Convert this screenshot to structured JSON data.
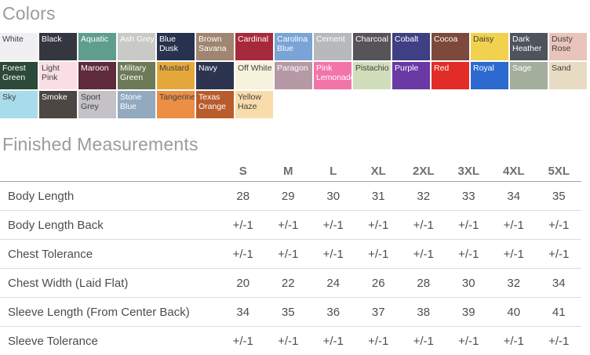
{
  "colors_section": {
    "title": "Colors",
    "swatches": [
      {
        "name": "White",
        "hex": "#f0f0f3",
        "text": "dark",
        "texture": false
      },
      {
        "name": "Black",
        "hex": "#343640",
        "text": "light",
        "texture": false
      },
      {
        "name": "Aquatic",
        "hex": "#5f9e8d",
        "text": "light",
        "texture": false
      },
      {
        "name": "Ash Grey",
        "hex": "#c9c9c7",
        "text": "light",
        "texture": true
      },
      {
        "name": "Blue Dusk",
        "hex": "#26324e",
        "text": "light",
        "texture": true
      },
      {
        "name": "Brown Savana",
        "hex": "#a08670",
        "text": "light",
        "texture": false
      },
      {
        "name": "Cardinal",
        "hex": "#a72a3c",
        "text": "light",
        "texture": false
      },
      {
        "name": "Carolina Blue",
        "hex": "#7aa3d6",
        "text": "light",
        "texture": false
      },
      {
        "name": "Cement",
        "hex": "#b7b9ba",
        "text": "light",
        "texture": false
      },
      {
        "name": "Charcoal",
        "hex": "#565359",
        "text": "light",
        "texture": false
      },
      {
        "name": "Cobalt",
        "hex": "#3e3f84",
        "text": "light",
        "texture": false
      },
      {
        "name": "Cocoa",
        "hex": "#7d493c",
        "text": "light",
        "texture": false
      },
      {
        "name": "Daisy",
        "hex": "#f2d14e",
        "text": "dark",
        "texture": false
      },
      {
        "name": "Dark Heather",
        "hex": "#4f535b",
        "text": "light",
        "texture": true
      },
      {
        "name": "Dusty Rose",
        "hex": "#e8c4ba",
        "text": "dark",
        "texture": false
      },
      {
        "name": "Forest Green",
        "hex": "#2c4939",
        "text": "light",
        "texture": false
      },
      {
        "name": "Light Pink",
        "hex": "#f9dfe4",
        "text": "dark",
        "texture": false
      },
      {
        "name": "Maroon",
        "hex": "#5f2a3c",
        "text": "light",
        "texture": false
      },
      {
        "name": "Military Green",
        "hex": "#6d7a58",
        "text": "light",
        "texture": false
      },
      {
        "name": "Mustard",
        "hex": "#e5a83d",
        "text": "dark",
        "texture": false
      },
      {
        "name": "Navy",
        "hex": "#2c3450",
        "text": "light",
        "texture": false
      },
      {
        "name": "Off White",
        "hex": "#f7f2dd",
        "text": "dark",
        "texture": false
      },
      {
        "name": "Paragon",
        "hex": "#b599a5",
        "text": "light",
        "texture": false
      },
      {
        "name": "Pink Lemonade",
        "hex": "#f374a9",
        "text": "light",
        "texture": false
      },
      {
        "name": "Pistachio",
        "hex": "#d0debb",
        "text": "dark",
        "texture": false
      },
      {
        "name": "Purple",
        "hex": "#6a39a4",
        "text": "light",
        "texture": false
      },
      {
        "name": "Red",
        "hex": "#e22c28",
        "text": "light",
        "texture": false
      },
      {
        "name": "Royal",
        "hex": "#2d6ad0",
        "text": "light",
        "texture": false
      },
      {
        "name": "Sage",
        "hex": "#a3ae9d",
        "text": "light",
        "texture": false
      },
      {
        "name": "Sand",
        "hex": "#e7dcc3",
        "text": "dark",
        "texture": false
      },
      {
        "name": "Sky",
        "hex": "#a8dceb",
        "text": "dark",
        "texture": false
      },
      {
        "name": "Smoke",
        "hex": "#4c4742",
        "text": "light",
        "texture": false
      },
      {
        "name": "Sport Grey",
        "hex": "#c4c2c7",
        "text": "dark",
        "texture": true
      },
      {
        "name": "Stone Blue",
        "hex": "#92a9c0",
        "text": "light",
        "texture": false
      },
      {
        "name": "Tangerine",
        "hex": "#ec8f45",
        "text": "dark",
        "texture": false
      },
      {
        "name": "Texas Orange",
        "hex": "#b85c2c",
        "text": "light",
        "texture": false
      },
      {
        "name": "Yellow Haze",
        "hex": "#f8dcab",
        "text": "dark",
        "texture": false
      }
    ]
  },
  "measurements_section": {
    "title": "Finished Measurements",
    "table": {
      "size_headers": [
        "S",
        "M",
        "L",
        "XL",
        "2XL",
        "3XL",
        "4XL",
        "5XL"
      ],
      "rows": [
        {
          "label": "Body Length",
          "values": [
            "28",
            "29",
            "30",
            "31",
            "32",
            "33",
            "34",
            "35"
          ]
        },
        {
          "label": "Body Length Back",
          "values": [
            "+/-1",
            "+/-1",
            "+/-1",
            "+/-1",
            "+/-1",
            "+/-1",
            "+/-1",
            "+/-1"
          ]
        },
        {
          "label": "Chest Tolerance",
          "values": [
            "+/-1",
            "+/-1",
            "+/-1",
            "+/-1",
            "+/-1",
            "+/-1",
            "+/-1",
            "+/-1"
          ]
        },
        {
          "label": "Chest Width (Laid Flat)",
          "values": [
            "20",
            "22",
            "24",
            "26",
            "28",
            "30",
            "32",
            "34"
          ]
        },
        {
          "label": "Sleeve Length (From Center Back)",
          "values": [
            "34",
            "35",
            "36",
            "37",
            "38",
            "39",
            "40",
            "41"
          ]
        },
        {
          "label": "Sleeve Tolerance",
          "values": [
            "+/-1",
            "+/-1",
            "+/-1",
            "+/-1",
            "+/-1",
            "+/-1",
            "+/-1",
            "+/-1"
          ]
        }
      ]
    }
  },
  "theme": {
    "heading_color": "#9b9b9b",
    "body_text_color": "#4d4d4d",
    "header_rule_color": "#a2a2a2",
    "row_rule_color": "#dcdcdc",
    "background": "#ffffff"
  }
}
